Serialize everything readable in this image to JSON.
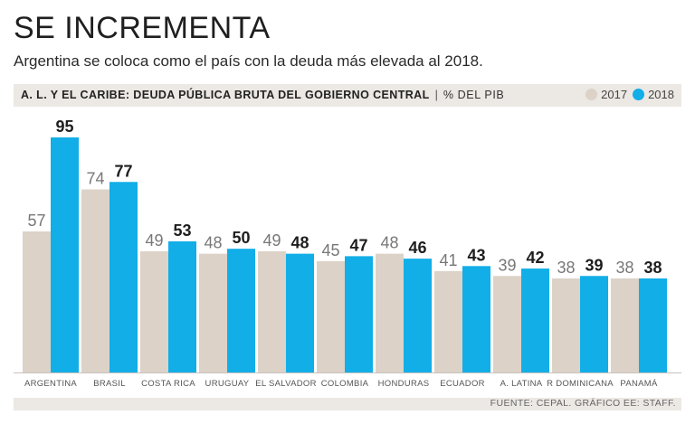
{
  "title": "SE INCREMENTA",
  "subtitle": "Argentina se coloca como el país con la deuda más elevada al 2018.",
  "header": {
    "main": "A. L. Y EL CARIBE: DEUDA PÚBLICA BRUTA DEL GOBIERNO CENTRAL",
    "separator": "|",
    "unit": "% DEL PIB"
  },
  "legend": [
    {
      "label": "2017",
      "color": "#dcd2c8"
    },
    {
      "label": "2018",
      "color": "#12aee8"
    }
  ],
  "footer": "FUENTE: CEPAL. GRÁFICO EE: STAFF.",
  "chart_data": {
    "type": "bar",
    "title": "A. L. Y EL CARIBE: DEUDA PÚBLICA BRUTA DEL GOBIERNO CENTRAL",
    "ylabel": "% DEL PIB",
    "xlabel": "",
    "ylim": [
      0,
      100
    ],
    "categories": [
      "ARGENTINA",
      "BRASIL",
      "COSTA RICA",
      "URUGUAY",
      "EL SALVADOR",
      "COLOMBIA",
      "HONDURAS",
      "ECUADOR",
      "A. LATINA",
      "R DOMINICANA",
      "PANAMÁ"
    ],
    "series": [
      {
        "name": "2017",
        "color": "#dcd2c8",
        "values": [
          57,
          74,
          49,
          48,
          49,
          45,
          48,
          41,
          39,
          38,
          38
        ]
      },
      {
        "name": "2018",
        "color": "#12aee8",
        "values": [
          95,
          77,
          53,
          50,
          48,
          47,
          46,
          43,
          42,
          39,
          38
        ]
      }
    ]
  }
}
